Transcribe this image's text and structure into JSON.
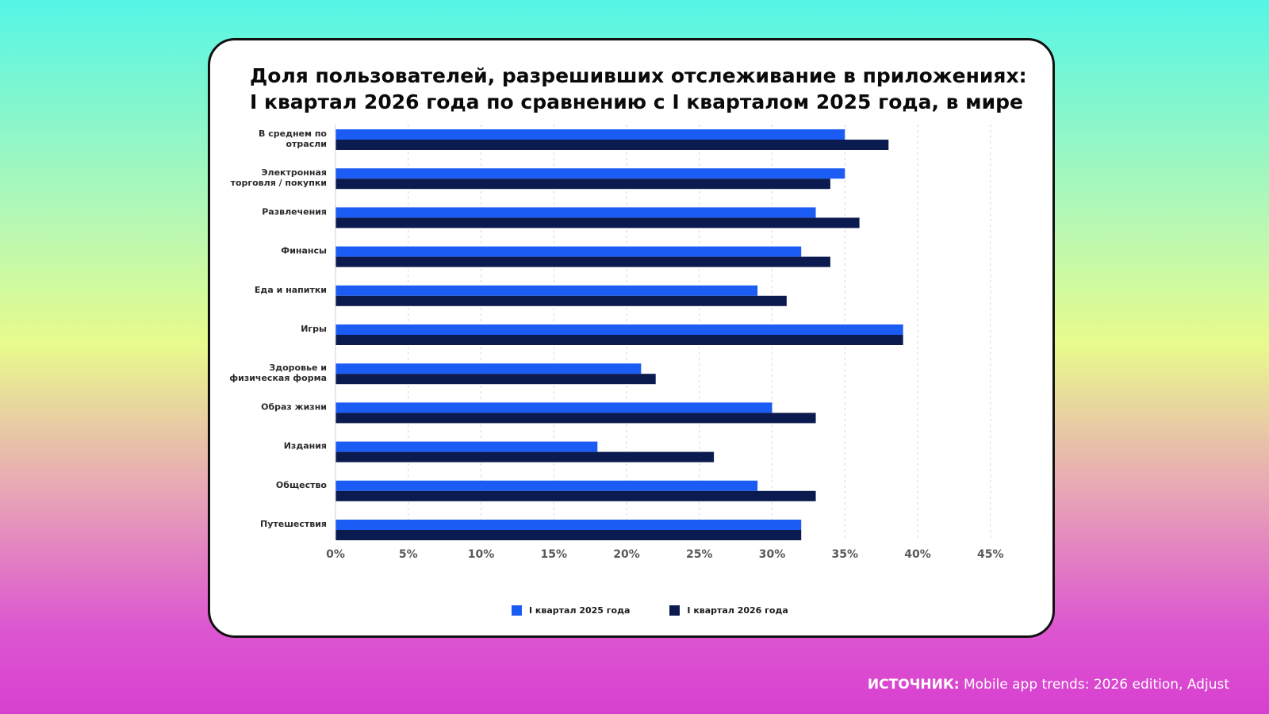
{
  "title": {
    "line1": "Доля пользователей, разрешивших отслеживание в приложениях:",
    "line2": "I квартал 2026 года по сравнению с I кварталом 2025 года, в мире"
  },
  "source": {
    "label": "ИСТОЧНИК:",
    "text": "Mobile app trends: 2026 edition, Adjust"
  },
  "legend": {
    "q1_2025": "I квартал 2025 года",
    "q1_2026": "I квартал 2026 года"
  },
  "colors": {
    "q1_2025": "#1b5cf5",
    "q1_2026": "#0c1b4f",
    "grid": "#d6d6d6",
    "tick_text": "#5a5a5a"
  },
  "chart_data": {
    "type": "bar",
    "orientation": "horizontal",
    "categories": [
      [
        "В среднем по",
        "отрасли"
      ],
      [
        "Электронная",
        "торговля / покупки"
      ],
      [
        "Развлечения"
      ],
      [
        "Финансы"
      ],
      [
        "Еда и напитки"
      ],
      [
        "Игры"
      ],
      [
        "Здоровье и",
        "физическая форма"
      ],
      [
        "Образ жизни"
      ],
      [
        "Издания"
      ],
      [
        "Общество"
      ],
      [
        "Путешествия"
      ]
    ],
    "series": [
      {
        "name": "I квартал 2025 года",
        "values": [
          35,
          35,
          33,
          32,
          29,
          39,
          21,
          30,
          18,
          29,
          32
        ]
      },
      {
        "name": "I квартал 2026 года",
        "values": [
          38,
          34,
          36,
          34,
          31,
          39,
          22,
          33,
          26,
          33,
          32
        ]
      }
    ],
    "xlim": [
      0,
      45
    ],
    "xticks": [
      "0%",
      "5%",
      "10%",
      "15%",
      "20%",
      "25%",
      "30%",
      "35%",
      "40%",
      "45%"
    ],
    "grid": "vertical dashed",
    "legend_position": "bottom"
  }
}
